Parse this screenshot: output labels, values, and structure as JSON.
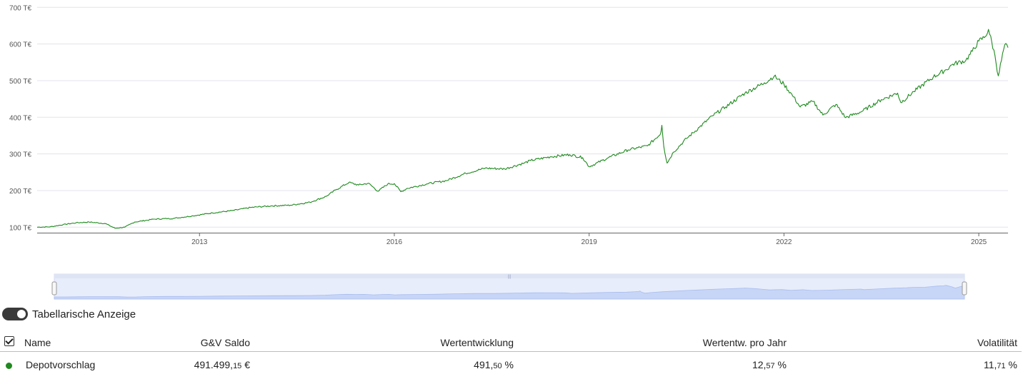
{
  "chart_data": {
    "type": "line",
    "yunit": "T€",
    "yticks": [
      100,
      200,
      300,
      400,
      500,
      600,
      700
    ],
    "ytick_labels": [
      "100 T€",
      "200 T€",
      "300 T€",
      "400 T€",
      "500 T€",
      "600 T€",
      "700 T€"
    ],
    "ylim": [
      85,
      720
    ],
    "xlim": [
      2010.5,
      2025.45
    ],
    "xticks": [
      2013,
      2016,
      2019,
      2022,
      2025
    ],
    "xtick_labels": [
      "2013",
      "2016",
      "2019",
      "2022",
      "2025"
    ],
    "grid": true,
    "series": [
      {
        "color": "#1f8a1f",
        "x": [
          2010.5,
          2010.7,
          2010.9,
          2011.1,
          2011.3,
          2011.55,
          2011.7,
          2011.85,
          2012.0,
          2012.3,
          2012.6,
          2012.9,
          2013.2,
          2013.5,
          2013.8,
          2014.1,
          2014.4,
          2014.7,
          2014.95,
          2015.1,
          2015.3,
          2015.45,
          2015.6,
          2015.75,
          2015.9,
          2016.0,
          2016.1,
          2016.2,
          2016.5,
          2016.8,
          2017.1,
          2017.4,
          2017.7,
          2018.0,
          2018.1,
          2018.4,
          2018.7,
          2018.9,
          2019.0,
          2019.3,
          2019.6,
          2019.9,
          2020.1,
          2020.12,
          2020.15,
          2020.2,
          2020.3,
          2020.5,
          2020.7,
          2020.9,
          2021.1,
          2021.4,
          2021.7,
          2021.85,
          2022.0,
          2022.15,
          2022.25,
          2022.45,
          2022.6,
          2022.8,
          2022.95,
          2023.2,
          2023.5,
          2023.75,
          2023.8,
          2024.0,
          2024.3,
          2024.5,
          2024.6,
          2024.8,
          2024.9,
          2025.0,
          2025.1,
          2025.15,
          2025.25,
          2025.3,
          2025.4,
          2025.45
        ],
        "y": [
          100,
          101,
          107,
          112,
          114,
          110,
          97,
          100,
          114,
          122,
          124,
          131,
          139,
          145,
          154,
          158,
          160,
          168,
          184,
          202,
          222,
          215,
          220,
          198,
          218,
          219,
          197,
          206,
          218,
          227,
          247,
          261,
          259,
          275,
          282,
          292,
          298,
          290,
          265,
          290,
          311,
          322,
          355,
          378,
          320,
          275,
          305,
          342,
          373,
          404,
          428,
          466,
          494,
          512,
          490,
          455,
          428,
          443,
          406,
          435,
          399,
          416,
          448,
          466,
          440,
          470,
          510,
          530,
          545,
          555,
          580,
          608,
          620,
          640,
          568,
          513,
          598,
          590
        ]
      }
    ]
  },
  "navigator_handle_label": "|||",
  "toggle": {
    "label": "Tabellarische Anzeige",
    "on": true
  },
  "table": {
    "headers": {
      "name": "Name",
      "saldo": "G&V Saldo",
      "wert": "Wertentwicklung",
      "jahr": "Wertentw. pro Jahr",
      "vol": "Volatilität"
    },
    "rows": [
      {
        "color": "#1f8a1f",
        "name": "Depotvorschlag",
        "saldo_int": "491.499,",
        "saldo_dec": "15",
        "saldo_unit": " €",
        "wert_int": "491,",
        "wert_dec": "50",
        "wert_unit": " %",
        "jahr_int": "12,",
        "jahr_dec": "57",
        "jahr_unit": " %",
        "vol_int": "11,",
        "vol_dec": "71",
        "vol_unit": " %"
      }
    ]
  }
}
